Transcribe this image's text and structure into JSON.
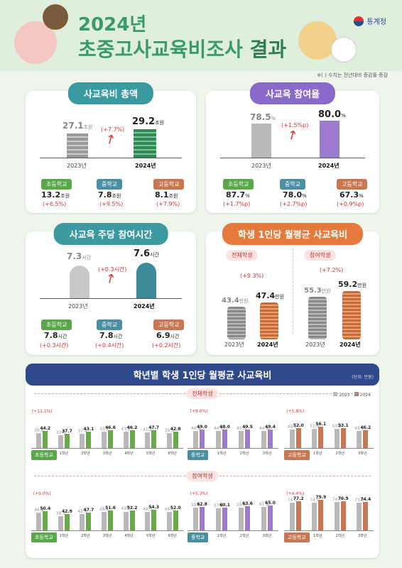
{
  "header": {
    "title_year": "2024년",
    "title_main": "초중고사교육비조사",
    "title_result": "결과",
    "logo": "통계청",
    "note": "※(   ) 수치는 전년대비 증감률·증감"
  },
  "card1": {
    "title": "사교육비 총액",
    "v2023": "27.1",
    "v2024": "29.2",
    "unit": "조원",
    "change": "(+7.7%)",
    "y2023": "2023년",
    "y2024": "2024년",
    "levels": [
      {
        "name": "초등학교",
        "value": "13.2",
        "unit": "조원",
        "change": "(+6.5%)"
      },
      {
        "name": "중학교",
        "value": "7.8",
        "unit": "조원",
        "change": "(+9.5%)"
      },
      {
        "name": "고등학교",
        "value": "8.1",
        "unit": "조원",
        "change": "(+7.9%)"
      }
    ]
  },
  "card2": {
    "title": "사교육 참여율",
    "v2023": "78.5",
    "v2024": "80.0",
    "unit": "%",
    "change": "(+1.5%p)",
    "y2023": "2023년",
    "y2024": "2024년",
    "levels": [
      {
        "name": "초등학교",
        "value": "87.7",
        "unit": "%",
        "change": "(+1.7%p)"
      },
      {
        "name": "중학교",
        "value": "78.0",
        "unit": "%",
        "change": "(+2.7%p)"
      },
      {
        "name": "고등학교",
        "value": "67.3",
        "unit": "%",
        "change": "(+0.9%p)"
      }
    ]
  },
  "card3": {
    "title": "사교육 주당 참여시간",
    "v2023": "7.3",
    "v2024": "7.6",
    "unit": "시간",
    "change": "(+0.3시간)",
    "y2023": "2023년",
    "y2024": "2024년",
    "levels": [
      {
        "name": "초등학교",
        "value": "7.8",
        "unit": "시간",
        "change": "(+0.3시간)"
      },
      {
        "name": "중학교",
        "value": "7.8",
        "unit": "시간",
        "change": "(+0.4시간)"
      },
      {
        "name": "고등학교",
        "value": "6.9",
        "unit": "시간",
        "change": "(+0.2시간)"
      }
    ]
  },
  "card4": {
    "title": "학생 1인당 월평균 사교육비",
    "all": {
      "label": "전체학생",
      "v2023": "43.4",
      "v2024": "47.4",
      "unit": "만원",
      "change": "(+9.3%)"
    },
    "part": {
      "label": "참여학생",
      "v2023": "55.3",
      "v2024": "59.2",
      "unit": "만원",
      "change": "(+7.2%)"
    },
    "y2023": "2023년",
    "y2024": "2024년"
  },
  "card5": {
    "title": "학년별 학생 1인당 월평균 사교육비",
    "unit_note": "(단위: 만원)",
    "legend_2023": "2023",
    "legend_2024": "2024",
    "sec_all": "전체학생",
    "sec_part": "참여학생"
  },
  "colors": {
    "gray": "#b9b9b9",
    "green": "#6aaa4a",
    "purple": "#9b7bd0",
    "orange": "#c97752"
  },
  "chart_data": [
    {
      "type": "bar",
      "group": "전체학생",
      "level": "초등학교",
      "categories": [
        "초등학교",
        "1학년",
        "2학년",
        "3학년",
        "4학년",
        "5학년",
        "6학년"
      ],
      "series": [
        {
          "name": "2023",
          "values": [
            39.8,
            33.8,
            37.4,
            43.2,
            43.2,
            41.2,
            39.3
          ]
        },
        {
          "name": "2024",
          "values": [
            44.2,
            37.7,
            43.1,
            46.6,
            46.2,
            47.7,
            42.8
          ]
        }
      ],
      "change": "(+11.1%)"
    },
    {
      "type": "bar",
      "group": "전체학생",
      "level": "중학교",
      "categories": [
        "중학교",
        "1학년",
        "2학년",
        "3학년"
      ],
      "series": [
        {
          "name": "2023",
          "values": [
            44.9,
            44.6,
            45.3,
            44.9
          ]
        },
        {
          "name": "2024",
          "values": [
            49.0,
            48.0,
            49.5,
            49.4
          ]
        }
      ],
      "change": "(+9.0%)"
    },
    {
      "type": "bar",
      "group": "전체학생",
      "level": "고등학교",
      "categories": [
        "고등학교",
        "1학년",
        "2학년",
        "3학년"
      ],
      "series": [
        {
          "name": "2023",
          "values": [
            49.1,
            51.5,
            50.8,
            44.5
          ]
        },
        {
          "name": "2024",
          "values": [
            52.0,
            56.1,
            53.1,
            46.2
          ]
        }
      ],
      "change": "(+5.8%)"
    },
    {
      "type": "bar",
      "group": "참여학생",
      "level": "초등학교",
      "categories": [
        "초등학교",
        "1학년",
        "2학년",
        "3학년",
        "4학년",
        "5학년",
        "6학년"
      ],
      "series": [
        {
          "name": "2023",
          "values": [
            46.2,
            38.3,
            42.4,
            48.1,
            49.7,
            49.3,
            49.1
          ]
        },
        {
          "name": "2024",
          "values": [
            50.4,
            42.9,
            47.7,
            51.6,
            52.2,
            54.3,
            52.0
          ]
        }
      ],
      "change": "(+9.0%)"
    },
    {
      "type": "bar",
      "group": "참여학생",
      "level": "중학교",
      "categories": [
        "중학교",
        "1학년",
        "2학년",
        "3학년"
      ],
      "series": [
        {
          "name": "2023",
          "values": [
            59.6,
            57.6,
            59.8,
            61.5
          ]
        },
        {
          "name": "2024",
          "values": [
            62.8,
            60.1,
            63.6,
            65.0
          ]
        }
      ],
      "change": "(+5.3%)"
    },
    {
      "type": "bar",
      "group": "참여학생",
      "level": "고등학교",
      "categories": [
        "고등학교",
        "1학년",
        "2학년",
        "3학년"
      ],
      "series": [
        {
          "name": "2023",
          "values": [
            74.0,
            74.0,
            74.5,
            73.3
          ]
        },
        {
          "name": "2024",
          "values": [
            77.2,
            79.9,
            76.9,
            74.4
          ]
        }
      ],
      "change": "(+4.4%)"
    }
  ]
}
